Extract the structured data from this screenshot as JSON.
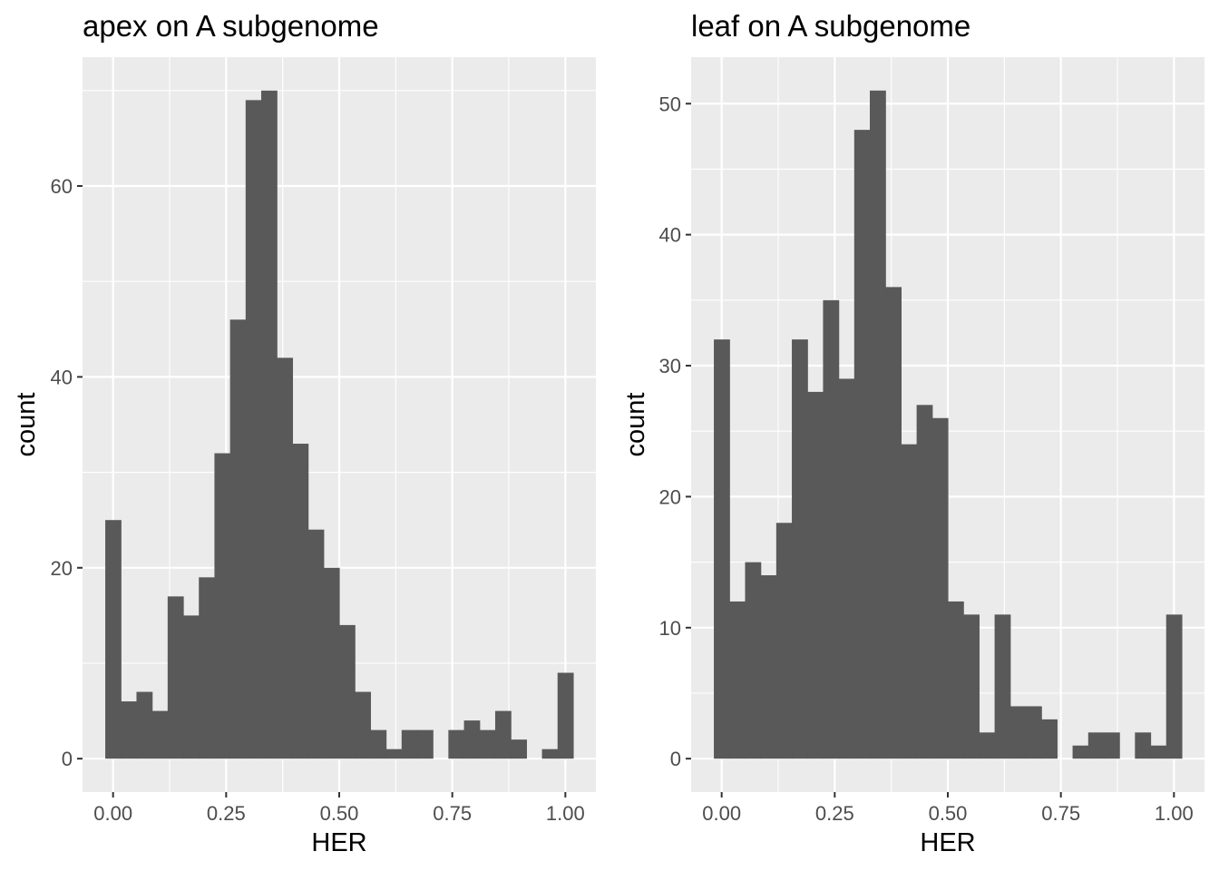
{
  "chart_data": [
    {
      "type": "bar",
      "title": "apex on A subgenome",
      "xlabel": "HER",
      "ylabel": "count",
      "xlim": [
        -0.0675,
        1.0675
      ],
      "ylim": [
        -3.5,
        73.5
      ],
      "x_ticks": [
        0.0,
        0.25,
        0.5,
        0.75,
        1.0
      ],
      "x_tick_labels": [
        "0.00",
        "0.25",
        "0.50",
        "0.75",
        "1.00"
      ],
      "y_ticks": [
        0,
        20,
        40,
        60
      ],
      "y_tick_labels": [
        "0",
        "20",
        "40",
        "60"
      ],
      "bin_width": 0.0345,
      "x": [
        0.0,
        0.0345,
        0.069,
        0.1034,
        0.1379,
        0.1724,
        0.2069,
        0.2414,
        0.2759,
        0.3103,
        0.3448,
        0.3793,
        0.4138,
        0.4483,
        0.4828,
        0.5172,
        0.5517,
        0.5862,
        0.6207,
        0.6552,
        0.6897,
        0.7241,
        0.7586,
        0.7931,
        0.8276,
        0.8621,
        0.8966,
        0.931,
        0.9655,
        1.0
      ],
      "values": [
        25,
        6,
        7,
        5,
        17,
        15,
        19,
        32,
        46,
        69,
        70,
        42,
        33,
        24,
        20,
        14,
        7,
        3,
        1,
        3,
        3,
        0,
        3,
        4,
        3,
        5,
        2,
        0,
        1,
        9
      ],
      "grid": true,
      "background": "#ebebeb",
      "bar_color": "#595959"
    },
    {
      "type": "bar",
      "title": "leaf on A subgenome",
      "xlabel": "HER",
      "ylabel": "count",
      "xlim": [
        -0.0675,
        1.0675
      ],
      "ylim": [
        -2.55,
        53.55
      ],
      "x_ticks": [
        0.0,
        0.25,
        0.5,
        0.75,
        1.0
      ],
      "x_tick_labels": [
        "0.00",
        "0.25",
        "0.50",
        "0.75",
        "1.00"
      ],
      "y_ticks": [
        0,
        10,
        20,
        30,
        40,
        50
      ],
      "y_tick_labels": [
        "0",
        "10",
        "20",
        "30",
        "40",
        "50"
      ],
      "bin_width": 0.0345,
      "x": [
        0.0,
        0.0345,
        0.069,
        0.1034,
        0.1379,
        0.1724,
        0.2069,
        0.2414,
        0.2759,
        0.3103,
        0.3448,
        0.3793,
        0.4138,
        0.4483,
        0.4828,
        0.5172,
        0.5517,
        0.5862,
        0.6207,
        0.6552,
        0.6897,
        0.7241,
        0.7586,
        0.7931,
        0.8276,
        0.8621,
        0.8966,
        0.931,
        0.9655,
        1.0
      ],
      "values": [
        32,
        12,
        15,
        14,
        18,
        32,
        28,
        35,
        29,
        48,
        51,
        36,
        24,
        27,
        26,
        12,
        11,
        2,
        11,
        4,
        4,
        3,
        0,
        1,
        2,
        2,
        0,
        2,
        1,
        11
      ],
      "grid": true,
      "background": "#ebebeb",
      "bar_color": "#595959"
    }
  ]
}
